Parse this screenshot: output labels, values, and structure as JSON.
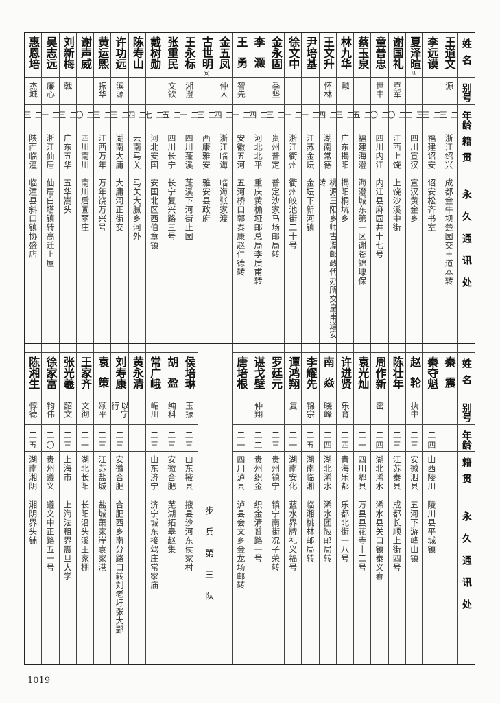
{
  "headers": {
    "name": "姓名",
    "alias": "别号",
    "age": "年龄",
    "native": "籍贯",
    "address": "永久通讯处"
  },
  "top": {
    "rows": [
      {
        "name": "王道文",
        "alias": "源",
        "age": "二三",
        "native": "浙江绍兴",
        "address": "成都金牛坝楚园交王道本转"
      },
      {
        "name": "李远谟",
        "alias": "",
        "age": "二三",
        "native": "福建诏安",
        "address": "诏安松齐书室"
      },
      {
        "name": "夏泽暄",
        "note": "④",
        "alias": "",
        "age": "三二",
        "native": "四川宣汉",
        "address": "宣汉黄金乡"
      },
      {
        "name": "谢国礼",
        "alias": "克军",
        "age": "二〇",
        "native": "江西上饶",
        "address": "上饶沙溪中街"
      },
      {
        "name": "童普忠",
        "alias": "世中",
        "age": "二〇",
        "native": "四川内江",
        "address": "内江县麻园井十七号"
      },
      {
        "name": "蔡玉泉",
        "alias": "",
        "age": "二五",
        "native": "福建海澄",
        "address": "海澄城东第一区谢苍锦埭保"
      },
      {
        "name": "林九华",
        "alias": "麟",
        "age": "二三",
        "native": "广东揭阳",
        "address": "揭阳桐坑乡"
      },
      {
        "name": "王文升",
        "alias": "怀林",
        "age": "二四",
        "native": "湖南常德",
        "address": "桃源三阳乡师古潭邮政代办所交皇甫道安转"
      },
      {
        "name": "尹培基",
        "alias": "",
        "age": "二一",
        "native": "江苏金坛",
        "address": "金坛下新河镇"
      },
      {
        "name": "徐文中",
        "alias": "",
        "age": "二一",
        "native": "浙江衢州",
        "address": "衢州皎池街二十号"
      },
      {
        "name": "金永固",
        "alias": "季坚",
        "age": "二三",
        "native": "贵州普定",
        "address": "普定沙家马场邮局转"
      },
      {
        "name": "李灏",
        "alias": "",
        "age": "二四",
        "native": "河北北平",
        "address": "重庆黄桷垭邮总局李质甫转"
      },
      {
        "name": "王勇",
        "alias": "智先",
        "age": "二一",
        "native": "安徽五河",
        "address": "五河桥口郭泰康赵仁德转"
      },
      {
        "name": "金五凤",
        "alias": "仲人",
        "age": "二四",
        "native": "浙江临海",
        "address": "临海张家渡"
      },
      {
        "name": "古世明",
        "note": "⑮",
        "alias": "",
        "age": "二三",
        "native": "西康雅安",
        "address": "雅安县政府"
      },
      {
        "name": "王永标",
        "alias": "湘澄",
        "age": "二一",
        "native": "四川蓬溪",
        "address": "蓬溪下河街止园"
      },
      {
        "name": "张重民",
        "alias": "文钦",
        "age": "二五",
        "native": "四川长宁",
        "address": "长宁复兴路三号"
      },
      {
        "name": "戴树勋",
        "alias": "",
        "age": "二七",
        "native": "河北安国",
        "address": "安国北区西伯章镇"
      },
      {
        "name": "陈寿山",
        "alias": "",
        "age": "二四",
        "native": "云南马关",
        "address": "马关大腻乡河外"
      },
      {
        "name": "许功远",
        "alias": "滨源",
        "age": "二三",
        "native": "湖南大庸",
        "address": "大庸河正街交"
      },
      {
        "name": "黄运熙",
        "alias": "振华",
        "age": "二三",
        "native": "江西万年",
        "address": "万年饶万兴号"
      },
      {
        "name": "谢声威",
        "alias": "",
        "age": "二〇",
        "native": "四川南川",
        "address": "南川后圃丽庄"
      },
      {
        "name": "刘新梅",
        "alias": "戟",
        "age": "二三",
        "native": "广东五华",
        "address": "五华嵩头"
      },
      {
        "name": "吴志远",
        "alias": "廉心",
        "age": "二一",
        "native": "浙江仙居",
        "address": "仙居白塔镇转高迁上屋"
      },
      {
        "name": "惠恩培",
        "alias": "杰城",
        "age": "二三",
        "native": "陕西临潼",
        "address": "临潼县斜口镇协盛店"
      }
    ]
  },
  "bottom": {
    "rows_right": [
      {
        "name": "秦震",
        "alias": "",
        "age": "",
        "native": "",
        "address": ""
      },
      {
        "name": "秦夺魁",
        "alias": "",
        "age": "二四",
        "native": "山西陵川",
        "address": "陵川县平城镇"
      },
      {
        "name": "赵轮",
        "alias": "执中",
        "age": "二三",
        "native": "安徽泗县",
        "address": "五河下游峰山镇"
      },
      {
        "name": "陈壮年",
        "alias": "",
        "age": "二三",
        "native": "江苏泰县",
        "address": "成都长顺上街四号"
      },
      {
        "name": "周作新",
        "alias": "密",
        "age": "二四",
        "native": "湖北浠水",
        "address": "浠水县关口镇泰义春"
      },
      {
        "name": "袁光灿",
        "alias": "",
        "age": "二一",
        "native": "四川郫县",
        "address": "万县县花寺十二号"
      },
      {
        "name": "许进贤",
        "alias": "乐育",
        "age": "二四",
        "native": "青海乐都",
        "address": "乐都北街一八号"
      },
      {
        "name": "南焱",
        "alias": "晓峰",
        "age": "二四",
        "native": "湖北浠水",
        "address": "浠水团陂邮局转"
      },
      {
        "name": "李耀先",
        "alias": "锦宗",
        "age": "二五",
        "native": "湖南临湘",
        "address": "临湘桃林邮局转"
      },
      {
        "name": "谭鸿翔",
        "alias": "复",
        "age": "二一",
        "native": "湖南安化",
        "address": "蓝水界牌礼义福号"
      },
      {
        "name": "罗廷元",
        "alias": "",
        "age": "二三",
        "native": "贵州镇宁",
        "address": "镇宁南街况子荣转"
      },
      {
        "name": "谌戈壁",
        "alias": "仲翔",
        "age": "二二",
        "native": "贵州织金",
        "address": "织金清普路一号"
      },
      {
        "name": "唐培根",
        "alias": "",
        "age": "二一",
        "native": "四川泸县",
        "address": "泸县会文乡金龙场邮转"
      }
    ],
    "section_label": "步兵第三队",
    "rows_left": [
      {
        "name": "侯培琳",
        "alias": "玉振",
        "age": "二三",
        "native": "山东掖县",
        "address": "掖县沙河东侯家村"
      },
      {
        "name": "胡盈",
        "alias": "纯科",
        "age": "二三",
        "native": "安徽合肥",
        "address": "芜湖拓皋赵集"
      },
      {
        "name": "常广峨",
        "alias": "嵋川",
        "age": "二三",
        "native": "山东济宁",
        "address": "济宁城东接驾庄常家庙"
      },
      {
        "name": "黄永清",
        "alias": "",
        "age": "",
        "native": "",
        "address": ""
      },
      {
        "name": "刘寿康",
        "alias": "以字行",
        "age": "二三",
        "native": "安徽合肥",
        "address": "合肥西乡南分路口转刘老圩张大郢"
      },
      {
        "name": "袁策",
        "alias": "颂平",
        "age": "二三",
        "native": "江苏盐城",
        "address": "盐城萧家岸袁家港"
      },
      {
        "name": "王家齐",
        "alias": "文彻",
        "age": "二一",
        "native": "湖北长阳",
        "address": "长阳沿头溪王家棚"
      },
      {
        "name": "张光羲",
        "alias": "韶文",
        "age": "二三",
        "native": "上海市",
        "address": "上海法租界震旦大学"
      },
      {
        "name": "徐家富",
        "alias": "钧伟",
        "age": "二〇",
        "native": "贵州遵义",
        "address": "遵义中正路五一号"
      },
      {
        "name": "陈湘生",
        "alias": "惇德",
        "age": "二五",
        "native": "湖南湘阴",
        "address": "湘阴界头铺"
      }
    ]
  },
  "page_number": "1019"
}
